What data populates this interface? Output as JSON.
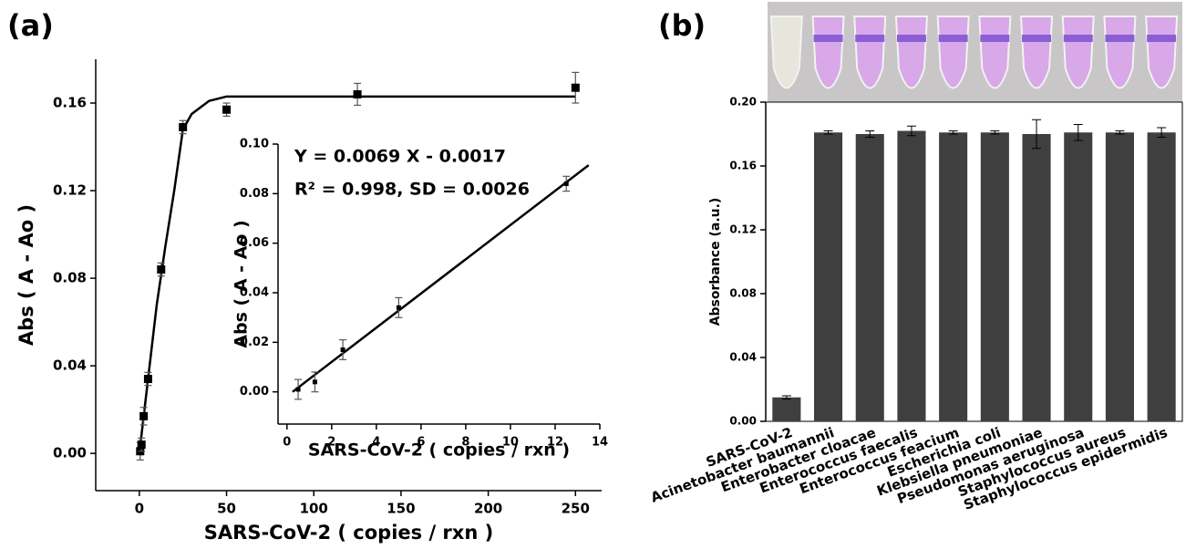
{
  "chart_data": [
    {
      "type": "scatter",
      "label": "(a)",
      "x_label": "SARS-CoV-2 ( copies / rxn )",
      "y_label": "Abs ( A - Ao )",
      "x": [
        0.5,
        1.25,
        2.5,
        5,
        12.5,
        25,
        50,
        125,
        250
      ],
      "values": [
        0.001,
        0.004,
        0.017,
        0.034,
        0.084,
        0.149,
        0.157,
        0.164,
        0.167
      ],
      "errors": [
        0.004,
        0.003,
        0.004,
        0.003,
        0.003,
        0.003,
        0.003,
        0.005,
        0.007
      ],
      "fit": {
        "x": [
          0,
          5,
          10,
          15,
          20,
          25,
          30,
          40,
          50,
          100,
          250
        ],
        "values": [
          0,
          0.034,
          0.068,
          0.095,
          0.12,
          0.148,
          0.155,
          0.161,
          0.163,
          0.163,
          0.163
        ]
      },
      "color": "#000000",
      "xlim": [
        -25,
        265
      ],
      "xticks": [
        0,
        50,
        100,
        150,
        200,
        250
      ],
      "ylim": [
        -0.017,
        0.18
      ],
      "yticks": [
        {
          "value": 0,
          "label": "0.00"
        },
        {
          "value": 0.04,
          "label": "0.04"
        },
        {
          "value": 0.08,
          "label": "0.08"
        },
        {
          "value": 0.12,
          "label": "0.12"
        },
        {
          "value": 0.16,
          "label": "0.16"
        }
      ]
    },
    {
      "type": "scatter",
      "x_label": "SARS-CoV-2 ( copies / rxn )",
      "y_label": "Abs ( A - Ao )",
      "annotations": [
        "Y = 0.0069 X - 0.0017",
        "R² = 0.998, SD = 0.0026"
      ],
      "x": [
        0.5,
        1.25,
        2.5,
        5,
        12.5
      ],
      "values": [
        0.001,
        0.004,
        0.017,
        0.034,
        0.084
      ],
      "errors": [
        0.004,
        0.004,
        0.004,
        0.004,
        0.003
      ],
      "fit": {
        "x": [
          0.25,
          13.5
        ],
        "values": [
          0,
          0.0915
        ]
      },
      "color": "#000000",
      "xlim": [
        -0.4,
        14
      ],
      "xticks": [
        0,
        2,
        4,
        6,
        8,
        10,
        12,
        14
      ],
      "ylim": [
        -0.013,
        0.1
      ],
      "yticks": [
        {
          "value": 0,
          "label": "0.00"
        },
        {
          "value": 0.02,
          "label": "0.02"
        },
        {
          "value": 0.04,
          "label": "0.04"
        },
        {
          "value": 0.06,
          "label": "0.06"
        },
        {
          "value": 0.08,
          "label": "0.08"
        },
        {
          "value": 0.1,
          "label": "0.10"
        }
      ]
    },
    {
      "type": "bar",
      "label": "(b)",
      "y_label": "Absorbance (a.u.)",
      "categories": [
        "SARS-CoV-2",
        "Acinetobacter baumannii",
        "Enterobacter cloacae",
        "Enterococcus faecalis",
        "Enterococcus feacium",
        "Escherichia coli",
        "Klebsiella pneumoniae",
        "Pseudomonas aeruginosa",
        "Staphylococcus aureus",
        "Staphylococcus epidermidis"
      ],
      "values": [
        0.015,
        0.181,
        0.18,
        0.182,
        0.181,
        0.181,
        0.18,
        0.181,
        0.181,
        0.181
      ],
      "errors": [
        0.001,
        0.001,
        0.002,
        0.003,
        0.001,
        0.001,
        0.009,
        0.005,
        0.001,
        0.003
      ],
      "color": "#3f3f3f",
      "ylim": [
        0,
        0.2
      ],
      "yticks": [
        {
          "value": 0,
          "label": "0.00"
        },
        {
          "value": 0.04,
          "label": "0.04"
        },
        {
          "value": 0.08,
          "label": "0.08"
        },
        {
          "value": 0.12,
          "label": "0.12"
        },
        {
          "value": 0.16,
          "label": "0.16"
        },
        {
          "value": 0.2,
          "label": "0.20"
        }
      ]
    }
  ]
}
